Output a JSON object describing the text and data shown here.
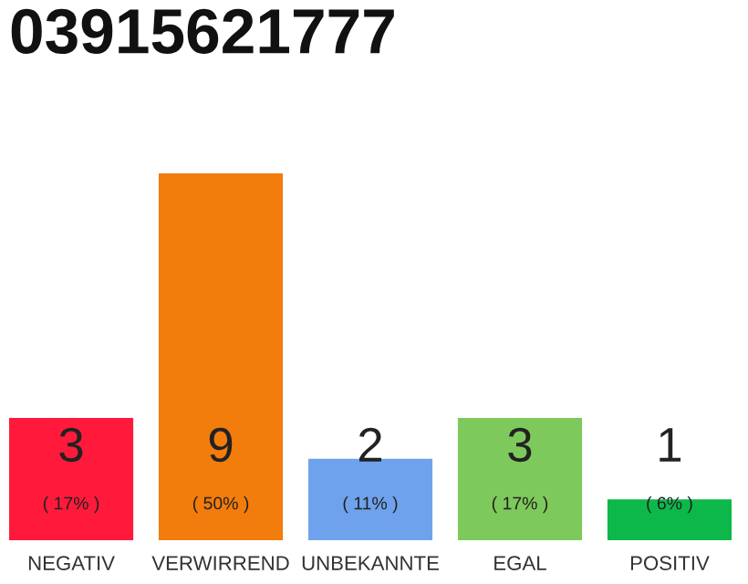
{
  "chart_data": {
    "type": "bar",
    "title": "03915621777",
    "categories": [
      "NEGATIV",
      "VERWIRREND",
      "UNBEKANNTE",
      "EGAL",
      "POSITIV"
    ],
    "values": [
      3,
      9,
      2,
      3,
      1
    ],
    "colors": [
      "#ff1a3c",
      "#f27c0c",
      "#6fa2ed",
      "#7ec95b",
      "#0db84a"
    ],
    "data_labels": true,
    "annotations": [
      "( 17% )",
      "( 50% )",
      "( 11% )",
      "( 17% )",
      "( 6% )"
    ],
    "grid": false,
    "legend": false
  }
}
